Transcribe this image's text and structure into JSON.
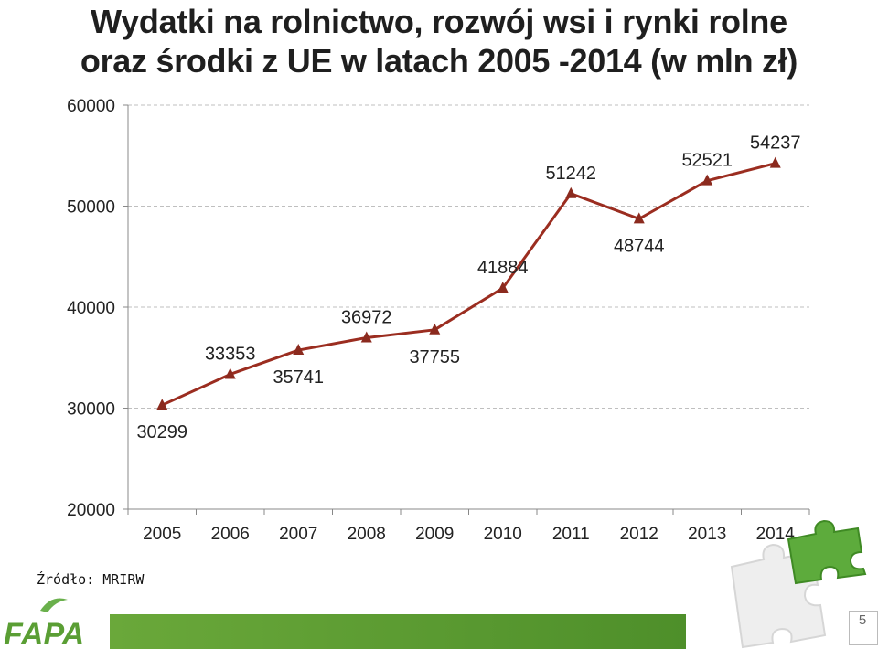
{
  "header": {
    "title_line1": "Wydatki na rolnictwo, rozwój wsi i rynki rolne",
    "title_line2": "oraz środki z UE w latach 2005 -2014 (w mln zł)"
  },
  "source_note": "Źródło: MRIRW",
  "page_number": "5",
  "logo_text": "FAPA",
  "chart_data": {
    "type": "line",
    "title": "Wydatki na rolnictwo, rozwój wsi i rynki rolne oraz środki z UE w latach 2005 -2014 (w mln zł)",
    "xlabel": "",
    "ylabel": "",
    "categories": [
      "2005",
      "2006",
      "2007",
      "2008",
      "2009",
      "2010",
      "2011",
      "2012",
      "2013",
      "2014"
    ],
    "values": [
      30299,
      33353,
      35741,
      36972,
      37755,
      41884,
      51242,
      48744,
      52521,
      54237
    ],
    "data_labels": [
      "30299",
      "33353",
      "35741",
      "36972",
      "37755",
      "41884",
      "51242",
      "48744",
      "52521",
      "54237"
    ],
    "label_side": [
      "below",
      "above",
      "below",
      "above",
      "below",
      "above",
      "above",
      "below",
      "above",
      "above"
    ],
    "ylim": [
      20000,
      60000
    ],
    "yticks": [
      20000,
      30000,
      40000,
      50000,
      60000
    ],
    "ytick_labels": [
      "20000",
      "30000",
      "40000",
      "50000",
      "60000"
    ],
    "grid": "horizontal dashed",
    "legend": "none",
    "colors": {
      "line": "#9b2d20",
      "marker": "#8b2a1e",
      "grid": "#bfbfbf",
      "axis": "#888888"
    },
    "marker": "triangle"
  }
}
